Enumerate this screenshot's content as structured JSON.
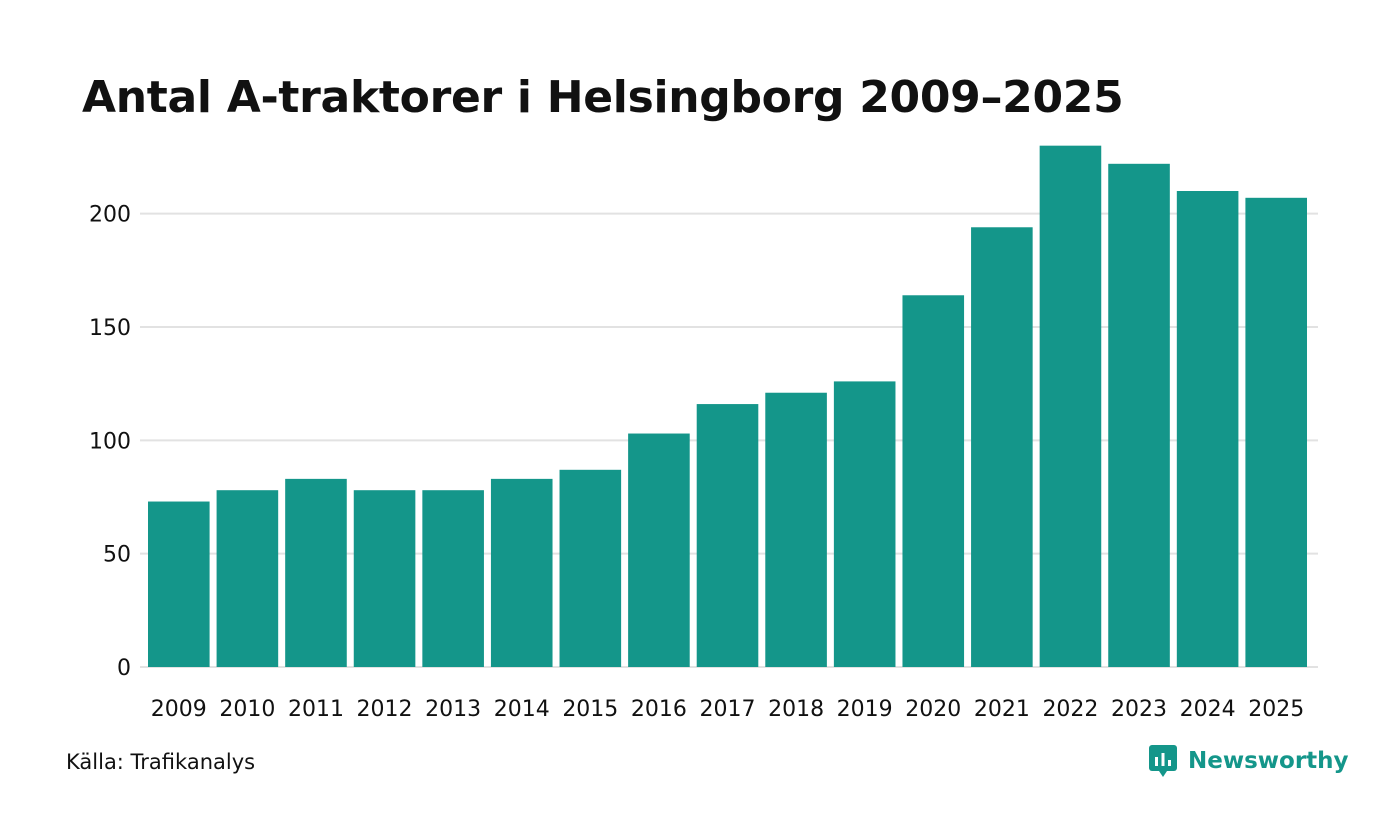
{
  "chart_data": {
    "type": "bar",
    "title": "Antal A-traktorer i Helsingborg 2009–2025",
    "categories": [
      "2009",
      "2010",
      "2011",
      "2012",
      "2013",
      "2014",
      "2015",
      "2016",
      "2017",
      "2018",
      "2019",
      "2020",
      "2021",
      "2022",
      "2023",
      "2024",
      "2025"
    ],
    "values": [
      73,
      78,
      83,
      78,
      78,
      83,
      87,
      103,
      116,
      121,
      126,
      164,
      194,
      230,
      222,
      210,
      207
    ],
    "yticks": [
      0,
      50,
      100,
      150,
      200
    ],
    "ylim": [
      0,
      240
    ],
    "xlabel": "",
    "ylabel": "",
    "grid": true,
    "bar_color": "#14968a",
    "grid_color": "#e2e2e2"
  },
  "footer": {
    "source": "Källa: Trafikanalys",
    "brand": "Newsworthy",
    "brand_icon": "newsworthy-logo-icon",
    "brand_color": "#14968a"
  }
}
